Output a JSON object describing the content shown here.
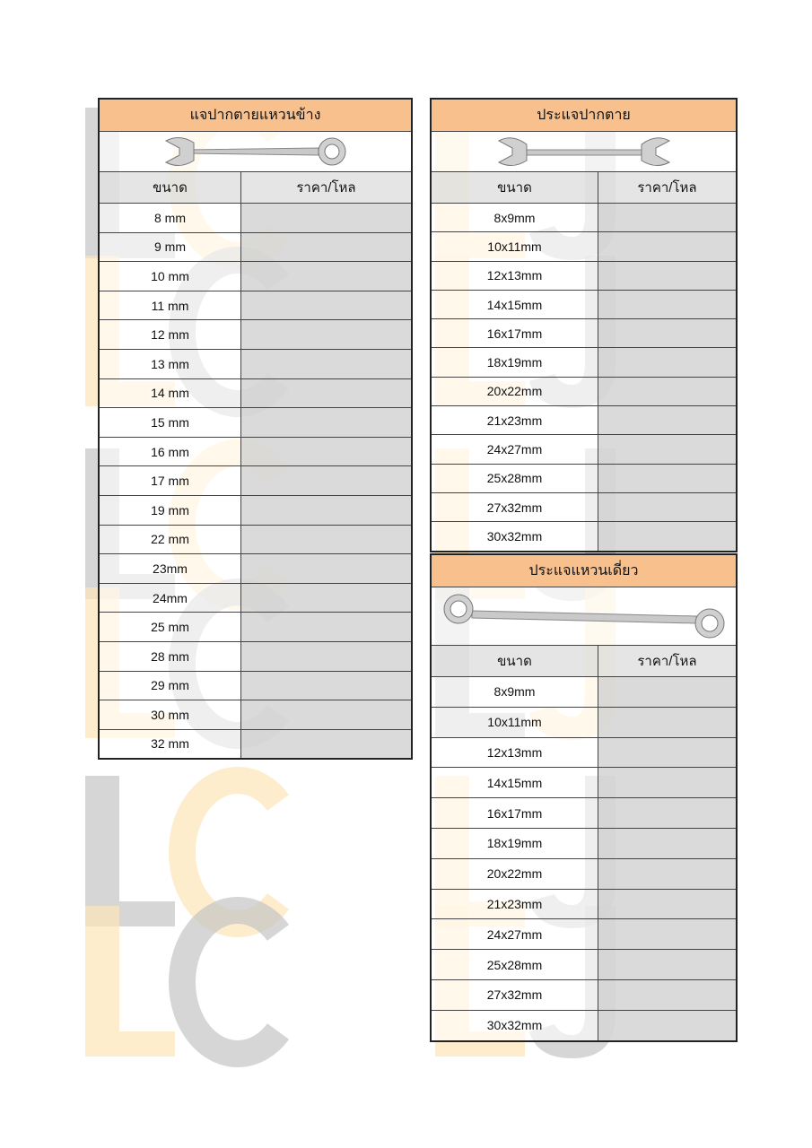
{
  "watermark": "LC LJ",
  "column_headers": {
    "size": "ขนาด",
    "price": "ราคา/โหล"
  },
  "tables": [
    {
      "title": "แจปากตายแหวนข้าง",
      "image": "combination-wrench",
      "sizes": [
        "8 mm",
        "9 mm",
        "10 mm",
        "11 mm",
        "12 mm",
        "13 mm",
        "14 mm",
        "15 mm",
        "16 mm",
        "17 mm",
        "19 mm",
        "22 mm",
        "23mm",
        "24mm",
        "25 mm",
        "28 mm",
        "29 mm",
        "30 mm",
        "32 mm"
      ]
    },
    {
      "title": "ประแจปากตาย",
      "image": "open-end-wrench",
      "sizes": [
        "8x9mm",
        "10x11mm",
        "12x13mm",
        "14x15mm",
        "16x17mm",
        "18x19mm",
        "20x22mm",
        "21x23mm",
        "24x27mm",
        "25x28mm",
        "27x32mm",
        "30x32mm"
      ]
    },
    {
      "title": "ประแจแหวนเดี่ยว",
      "image": "offset-box-wrench",
      "sizes": [
        "8x9mm",
        "10x11mm",
        "12x13mm",
        "14x15mm",
        "16x17mm",
        "18x19mm",
        "20x22mm",
        "21x23mm",
        "24x27mm",
        "25x28mm",
        "27x32mm",
        "30x32mm"
      ]
    }
  ],
  "colors": {
    "header": "#f8c08c",
    "price_cell": "#d6d6d6"
  }
}
